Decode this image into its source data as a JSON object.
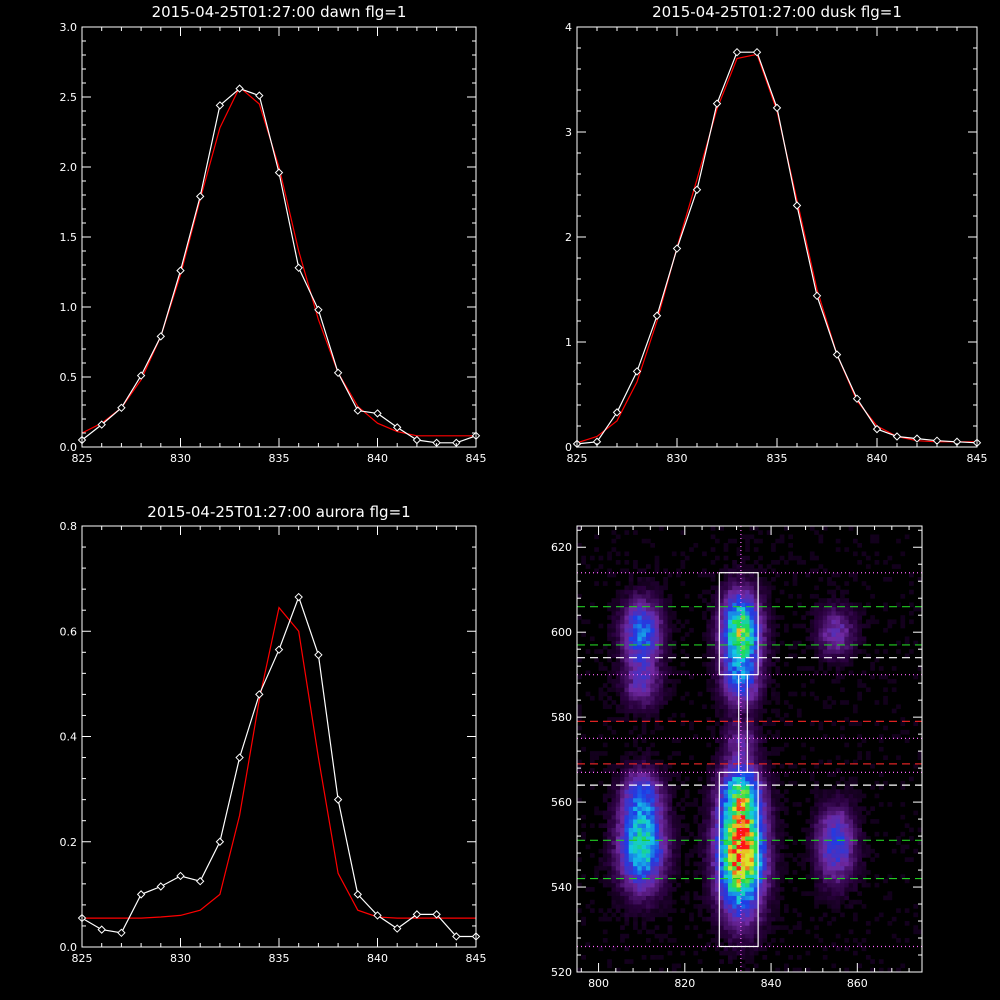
{
  "chart_data": [
    {
      "panel": "dawn",
      "type": "line",
      "title": "2015-04-25T01:27:00 dawn flg=1",
      "xlim": [
        825,
        845
      ],
      "ylim": [
        0,
        3.0
      ],
      "x_ticks": [
        "825",
        "830",
        "835",
        "840",
        "845"
      ],
      "y_ticks": [
        "0.0",
        "0.5",
        "1.0",
        "1.5",
        "2.0",
        "2.5",
        "3.0"
      ],
      "series": [
        {
          "role": "measured",
          "color": "#ffffff",
          "markers": true,
          "x": [
            825,
            826,
            827,
            828,
            829,
            830,
            831,
            832,
            833,
            834,
            835,
            836,
            837,
            838,
            839,
            840,
            841,
            842,
            843,
            844,
            845
          ],
          "y": [
            0.05,
            0.16,
            0.28,
            0.51,
            0.79,
            1.26,
            1.79,
            2.44,
            2.56,
            2.51,
            1.96,
            1.28,
            0.98,
            0.53,
            0.26,
            0.24,
            0.14,
            0.05,
            0.03,
            0.03,
            0.08
          ]
        },
        {
          "role": "fit",
          "color": "#ff0000",
          "markers": false,
          "x": [
            825,
            826,
            827,
            828,
            829,
            830,
            831,
            832,
            833,
            834,
            835,
            836,
            837,
            838,
            839,
            840,
            841,
            842,
            843,
            844,
            845
          ],
          "y": [
            0.1,
            0.17,
            0.28,
            0.48,
            0.79,
            1.23,
            1.77,
            2.28,
            2.57,
            2.45,
            2.0,
            1.4,
            0.91,
            0.53,
            0.29,
            0.17,
            0.11,
            0.08,
            0.08,
            0.08,
            0.08
          ]
        }
      ]
    },
    {
      "panel": "dusk",
      "type": "line",
      "title": "2015-04-25T01:27:00 dusk flg=1",
      "xlim": [
        825,
        845
      ],
      "ylim": [
        0,
        4
      ],
      "x_ticks": [
        "825",
        "830",
        "835",
        "840",
        "845"
      ],
      "y_ticks": [
        "0",
        "1",
        "2",
        "3",
        "4"
      ],
      "series": [
        {
          "role": "measured",
          "color": "#ffffff",
          "markers": true,
          "x": [
            825,
            826,
            827,
            828,
            829,
            830,
            831,
            832,
            833,
            834,
            835,
            836,
            837,
            838,
            839,
            840,
            841,
            842,
            843,
            844,
            845
          ],
          "y": [
            0.03,
            0.05,
            0.33,
            0.72,
            1.25,
            1.89,
            2.45,
            3.27,
            3.76,
            3.76,
            3.23,
            2.3,
            1.44,
            0.88,
            0.46,
            0.17,
            0.1,
            0.08,
            0.06,
            0.05,
            0.04
          ]
        },
        {
          "role": "fit",
          "color": "#ff0000",
          "markers": false,
          "x": [
            825,
            826,
            827,
            828,
            829,
            830,
            831,
            832,
            833,
            834,
            835,
            836,
            837,
            838,
            839,
            840,
            841,
            842,
            843,
            844,
            845
          ],
          "y": [
            0.04,
            0.1,
            0.25,
            0.62,
            1.2,
            1.9,
            2.55,
            3.22,
            3.7,
            3.74,
            3.2,
            2.35,
            1.5,
            0.88,
            0.44,
            0.2,
            0.1,
            0.06,
            0.05,
            0.05,
            0.05
          ]
        }
      ]
    },
    {
      "panel": "aurora",
      "type": "line",
      "title": "2015-04-25T01:27:00 aurora flg=1",
      "xlim": [
        825,
        845
      ],
      "ylim": [
        0,
        0.8
      ],
      "x_ticks": [
        "825",
        "830",
        "835",
        "840",
        "845"
      ],
      "y_ticks": [
        "0.0",
        "0.2",
        "0.4",
        "0.6",
        "0.8"
      ],
      "series": [
        {
          "role": "measured",
          "color": "#ffffff",
          "markers": true,
          "x": [
            825,
            826,
            827,
            828,
            829,
            830,
            831,
            832,
            833,
            834,
            835,
            836,
            837,
            838,
            839,
            840,
            841,
            842,
            843,
            844,
            845
          ],
          "y": [
            0.055,
            0.033,
            0.027,
            0.1,
            0.115,
            0.135,
            0.125,
            0.2,
            0.36,
            0.48,
            0.565,
            0.665,
            0.555,
            0.28,
            0.1,
            0.06,
            0.035,
            0.062,
            0.062,
            0.02,
            0.02
          ]
        },
        {
          "role": "fit",
          "color": "#ff0000",
          "markers": false,
          "x": [
            825,
            826,
            827,
            828,
            829,
            830,
            831,
            832,
            833,
            834,
            835,
            836,
            837,
            838,
            839,
            840,
            841,
            842,
            843,
            844,
            845
          ],
          "y": [
            0.055,
            0.055,
            0.055,
            0.055,
            0.057,
            0.06,
            0.07,
            0.1,
            0.25,
            0.47,
            0.645,
            0.6,
            0.36,
            0.14,
            0.07,
            0.057,
            0.055,
            0.055,
            0.055,
            0.055,
            0.055
          ]
        }
      ]
    },
    {
      "panel": "image",
      "type": "heatmap",
      "xlim": [
        795,
        875
      ],
      "ylim": [
        520,
        625
      ],
      "x_ticks": [
        "800",
        "820",
        "840",
        "860"
      ],
      "y_ticks": [
        "520",
        "540",
        "560",
        "580",
        "600",
        "620"
      ],
      "blobs": [
        {
          "x": 810,
          "y": 600,
          "sx": 3,
          "sy": 5,
          "amp": 0.45
        },
        {
          "x": 810,
          "y": 588,
          "sx": 3,
          "sy": 4,
          "amp": 0.22
        },
        {
          "x": 810,
          "y": 550,
          "sx": 3.5,
          "sy": 7,
          "amp": 0.6
        },
        {
          "x": 810,
          "y": 562,
          "sx": 3,
          "sy": 4,
          "amp": 0.28
        },
        {
          "x": 833,
          "y": 600,
          "sx": 3,
          "sy": 6,
          "amp": 0.75
        },
        {
          "x": 833,
          "y": 588,
          "sx": 3,
          "sy": 4,
          "amp": 0.3
        },
        {
          "x": 833,
          "y": 548,
          "sx": 3.5,
          "sy": 9,
          "amp": 1.0
        },
        {
          "x": 833,
          "y": 562,
          "sx": 3,
          "sy": 5,
          "amp": 0.45
        },
        {
          "x": 833,
          "y": 575,
          "sx": 2.5,
          "sy": 3,
          "amp": 0.18
        },
        {
          "x": 855,
          "y": 600,
          "sx": 3,
          "sy": 4,
          "amp": 0.22
        },
        {
          "x": 855,
          "y": 550,
          "sx": 3,
          "sy": 6,
          "amp": 0.35
        }
      ],
      "boxes": [
        {
          "x0": 828,
          "x1": 837,
          "y0": 590,
          "y1": 614,
          "color": "#ffffff"
        },
        {
          "x0": 828,
          "x1": 837,
          "y0": 526,
          "y1": 567,
          "color": "#ffffff"
        },
        {
          "x0": 832.5,
          "x1": 834.5,
          "y0": 567,
          "y1": 590,
          "color": "#ffffff"
        }
      ],
      "hlines": [
        {
          "y": 614,
          "color": "#ff66ff",
          "style": "dotted"
        },
        {
          "y": 606,
          "color": "#22cc22",
          "style": "dashed"
        },
        {
          "y": 597,
          "color": "#22cc22",
          "style": "dashed"
        },
        {
          "y": 594,
          "color": "#ffffff",
          "style": "dashed"
        },
        {
          "y": 590,
          "color": "#ff66ff",
          "style": "dotted"
        },
        {
          "y": 579,
          "color": "#dd2222",
          "style": "dashed"
        },
        {
          "y": 575,
          "color": "#ff66ff",
          "style": "dotted"
        },
        {
          "y": 569,
          "color": "#dd2222",
          "style": "dashed"
        },
        {
          "y": 567,
          "color": "#ff66ff",
          "style": "dotted"
        },
        {
          "y": 564,
          "color": "#ffffff",
          "style": "dashed"
        },
        {
          "y": 551,
          "color": "#22cc22",
          "style": "dashed"
        },
        {
          "y": 542,
          "color": "#22cc22",
          "style": "dashed"
        },
        {
          "y": 526,
          "color": "#ff66ff",
          "style": "dotted"
        }
      ],
      "vlines": [
        {
          "x": 833,
          "color": "#ff66ff",
          "style": "dotted"
        }
      ],
      "colors": {
        "low": "#000000",
        "mid": "#5a2a8a",
        "high": "#ff0000"
      }
    }
  ]
}
